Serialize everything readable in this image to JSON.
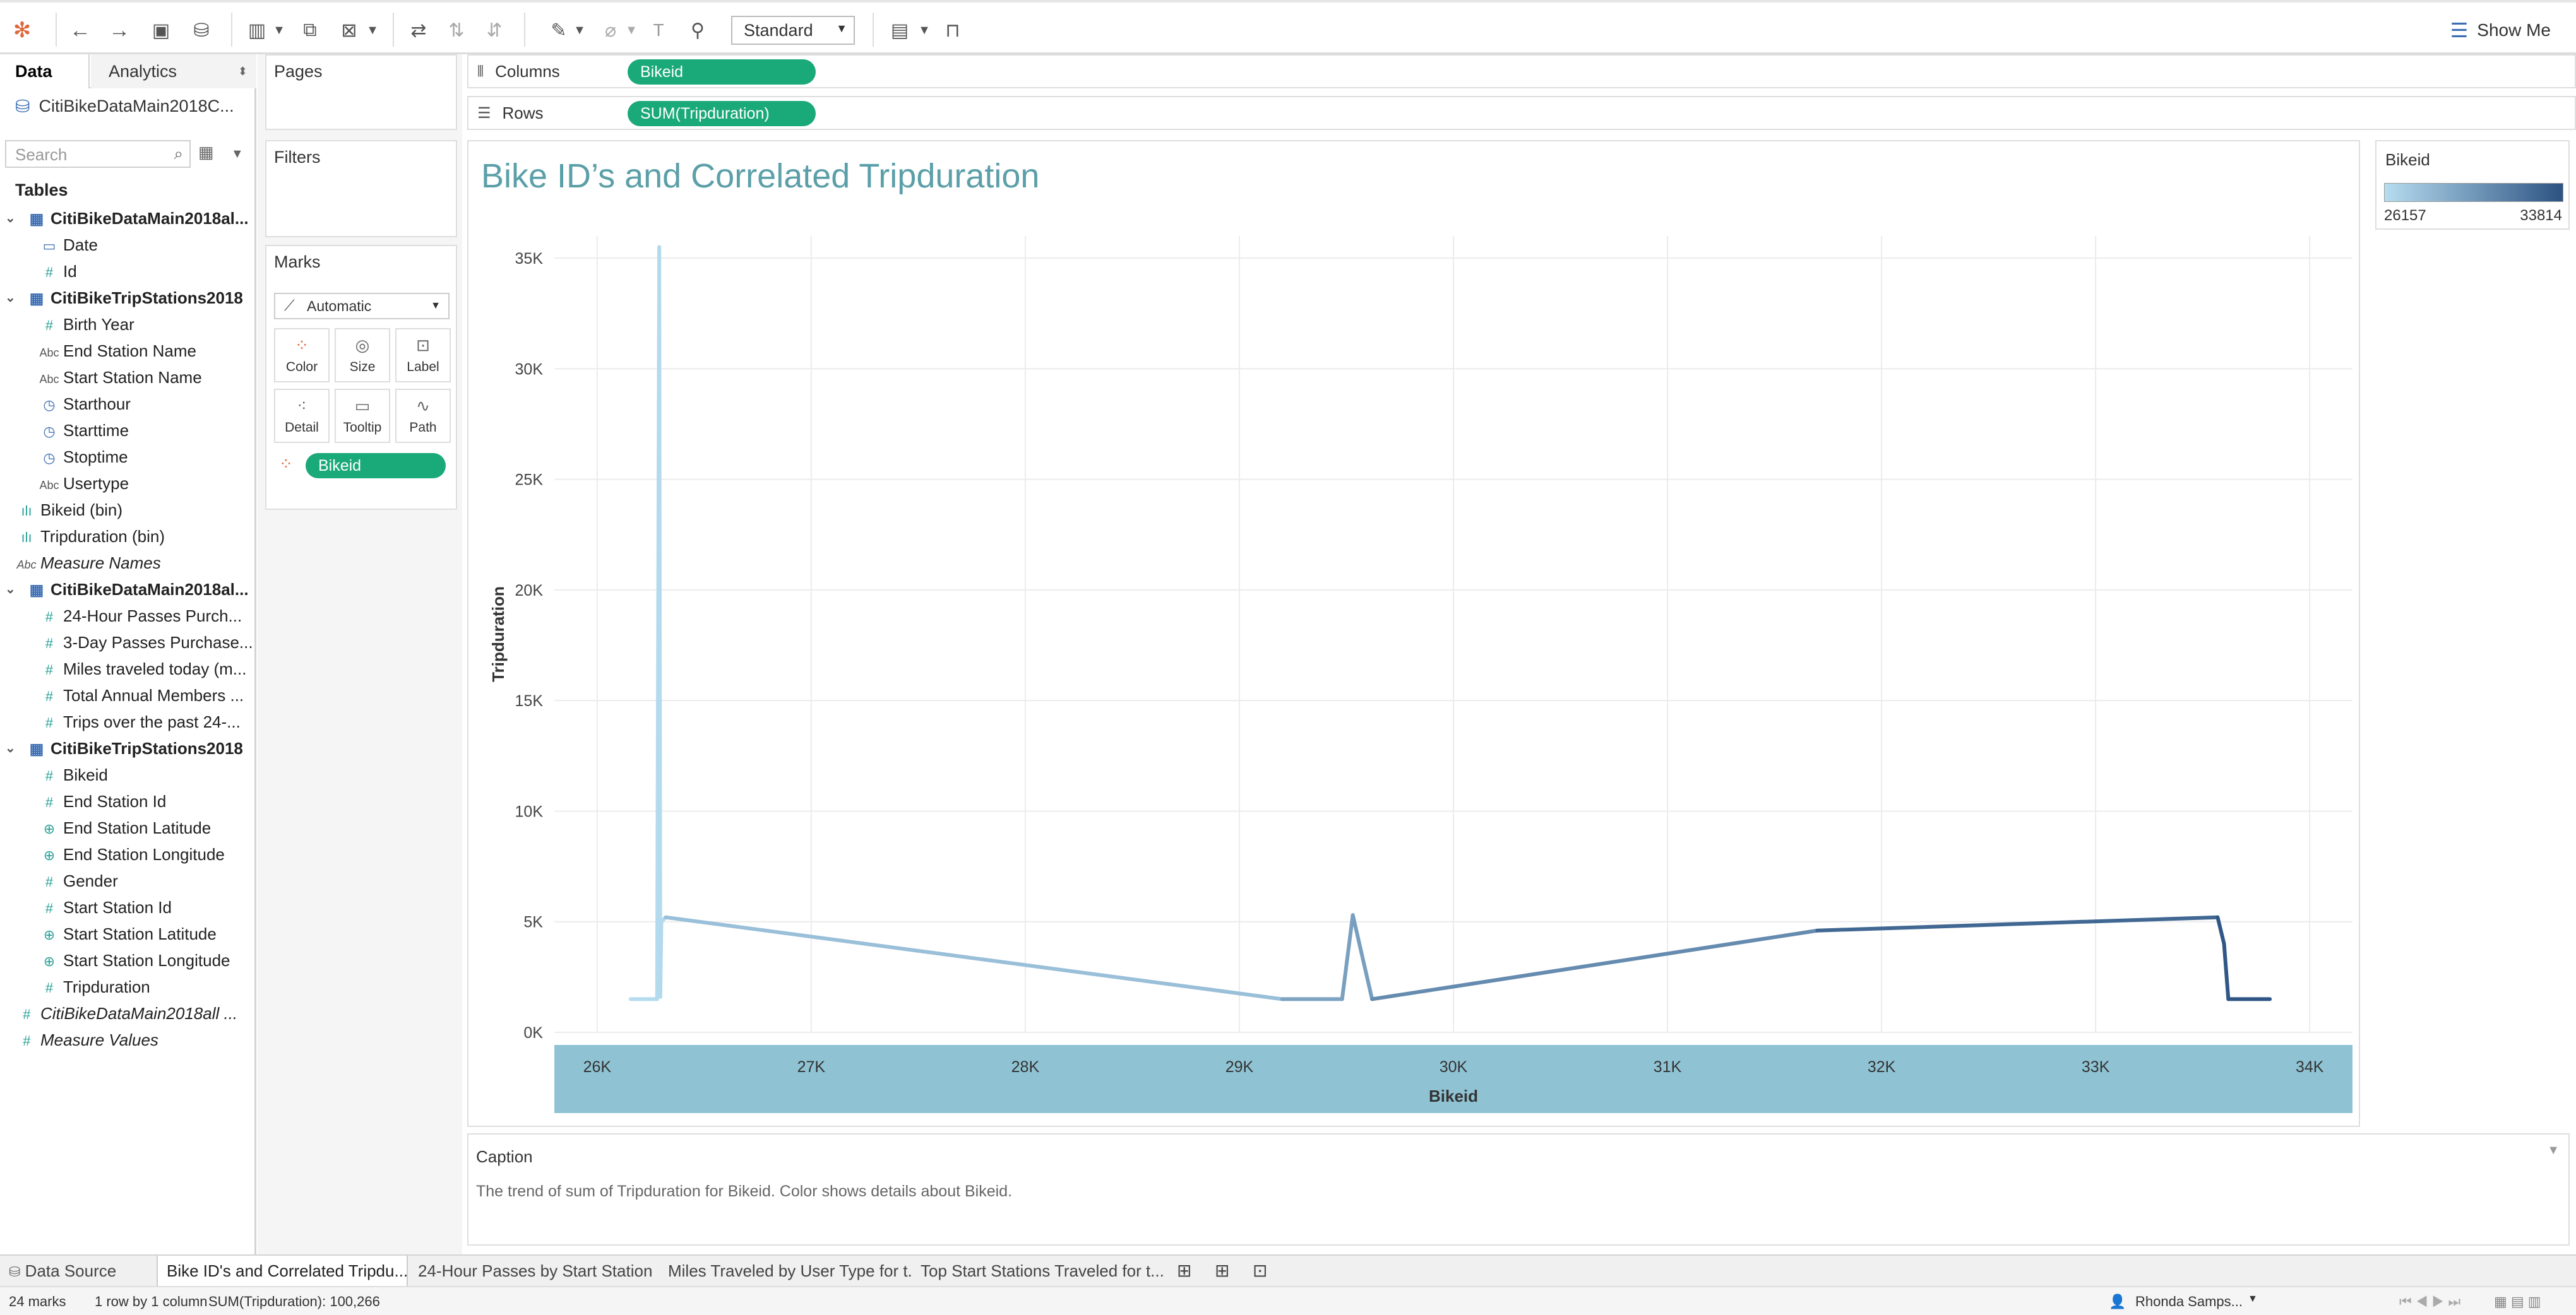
{
  "toolbar": {
    "mode_select": "Standard",
    "show_me": "Show Me"
  },
  "data_pane": {
    "tab_data": "Data",
    "tab_analytics": "Analytics",
    "data_source": "CitiBikeDataMain2018C...",
    "search_placeholder": "Search",
    "tables_header": "Tables",
    "fields": [
      {
        "label": "CitiBikeDataMain2018al...",
        "kind": "table",
        "indent": 0
      },
      {
        "label": "Date",
        "kind": "date",
        "indent": 1
      },
      {
        "label": "Id",
        "kind": "num",
        "indent": 1
      },
      {
        "label": "CitiBikeTripStations2018",
        "kind": "table",
        "indent": 0
      },
      {
        "label": "Birth Year",
        "kind": "num",
        "indent": 1
      },
      {
        "label": "End Station Name",
        "kind": "abc",
        "indent": 1
      },
      {
        "label": "Start Station Name",
        "kind": "abc",
        "indent": 1
      },
      {
        "label": "Starthour",
        "kind": "datetime",
        "indent": 1
      },
      {
        "label": "Starttime",
        "kind": "datetime",
        "indent": 1
      },
      {
        "label": "Stoptime",
        "kind": "datetime",
        "indent": 1
      },
      {
        "label": "Usertype",
        "kind": "abc",
        "indent": 1
      },
      {
        "label": "Bikeid (bin)",
        "kind": "bin",
        "indent": 0
      },
      {
        "label": "Tripduration (bin)",
        "kind": "bin",
        "indent": 0
      },
      {
        "label": "Measure Names",
        "kind": "abc-italic",
        "indent": 0
      },
      {
        "label": "CitiBikeDataMain2018al...",
        "kind": "table",
        "indent": 0
      },
      {
        "label": "24-Hour Passes Purch...",
        "kind": "num",
        "indent": 1
      },
      {
        "label": "3-Day Passes Purchase...",
        "kind": "num",
        "indent": 1
      },
      {
        "label": "Miles traveled today (m...",
        "kind": "num",
        "indent": 1
      },
      {
        "label": "Total Annual Members ...",
        "kind": "num",
        "indent": 1
      },
      {
        "label": "Trips over the past 24-...",
        "kind": "num",
        "indent": 1
      },
      {
        "label": "CitiBikeTripStations2018",
        "kind": "table",
        "indent": 0
      },
      {
        "label": "Bikeid",
        "kind": "num",
        "indent": 1
      },
      {
        "label": "End Station Id",
        "kind": "num",
        "indent": 1
      },
      {
        "label": "End Station Latitude",
        "kind": "geo",
        "indent": 1
      },
      {
        "label": "End Station Longitude",
        "kind": "geo",
        "indent": 1
      },
      {
        "label": "Gender",
        "kind": "num",
        "indent": 1
      },
      {
        "label": "Start Station Id",
        "kind": "num",
        "indent": 1
      },
      {
        "label": "Start Station Latitude",
        "kind": "geo",
        "indent": 1
      },
      {
        "label": "Start Station Longitude",
        "kind": "geo",
        "indent": 1
      },
      {
        "label": "Tripduration",
        "kind": "num",
        "indent": 1
      },
      {
        "label": "CitiBikeDataMain2018all ...",
        "kind": "num-italic",
        "indent": 0
      },
      {
        "label": "Measure Values",
        "kind": "num-italic",
        "indent": 0
      }
    ]
  },
  "cards": {
    "pages": "Pages",
    "filters": "Filters",
    "marks": "Marks",
    "mark_type": "Automatic",
    "buttons": [
      "Color",
      "Size",
      "Label",
      "Detail",
      "Tooltip",
      "Path"
    ],
    "color_pill": "Bikeid"
  },
  "shelves": {
    "columns_label": "Columns",
    "columns_pill": "Bikeid",
    "rows_label": "Rows",
    "rows_pill": "SUM(Tripduration)"
  },
  "view": {
    "title": "Bike ID’s and Correlated Tripduration"
  },
  "caption": {
    "header": "Caption",
    "text": "The trend of sum of Tripduration for Bikeid.  Color shows details about Bikeid."
  },
  "legend": {
    "title": "Bikeid",
    "min": "26157",
    "max": "33814",
    "color_low": "#b6dcf0",
    "color_high": "#2c5382"
  },
  "sheet_tabs": {
    "data_source": "Data Source",
    "tabs": [
      "Bike ID's and Correlated Tripdu...",
      "24-Hour Passes by Start Station",
      "Miles Traveled by User Type for t...",
      "Top Start Stations Traveled for t..."
    ]
  },
  "status": {
    "marks": "24 marks",
    "dims": "1 row by 1 column",
    "sum": "SUM(Tripduration): 100,266",
    "user": "Rhonda Samps..."
  },
  "chart_data": {
    "type": "line",
    "xlabel": "Bikeid",
    "ylabel": "Tripduration",
    "xlim": [
      25800,
      34200
    ],
    "ylim": [
      0,
      36000
    ],
    "x_ticks": [
      26000,
      27000,
      28000,
      29000,
      30000,
      31000,
      32000,
      33000,
      34000
    ],
    "x_tick_labels": [
      "26K",
      "27K",
      "28K",
      "29K",
      "30K",
      "31K",
      "32K",
      "33K",
      "34K"
    ],
    "y_ticks": [
      0,
      5000,
      10000,
      15000,
      20000,
      25000,
      30000,
      35000
    ],
    "y_tick_labels": [
      "0K",
      "5K",
      "10K",
      "15K",
      "20K",
      "25K",
      "30K",
      "35K"
    ],
    "x": [
      26157,
      26280,
      26290,
      26295,
      26300,
      26320,
      29200,
      29480,
      29530,
      29620,
      31700,
      33570,
      33600,
      33620,
      33814
    ],
    "y": [
      1500,
      1500,
      35500,
      1600,
      5000,
      5200,
      1500,
      1500,
      5300,
      1500,
      4600,
      5200,
      4000,
      1500,
      1500
    ],
    "color_range": [
      "#b6dcf0",
      "#2c5382"
    ]
  }
}
